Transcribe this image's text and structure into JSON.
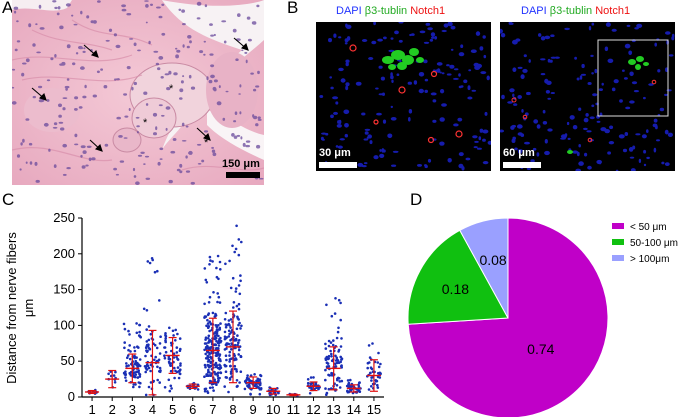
{
  "panels": {
    "A": {
      "letter": "A",
      "scale_bar": "150 μm"
    },
    "B": {
      "letter": "B",
      "legend_left": {
        "dapi": "DAPI",
        "tublin": "β3-tublin",
        "notch": "Notch1"
      },
      "legend_right": {
        "dapi": "DAPI",
        "tublin": "β3-tublin",
        "notch": "Notch1"
      },
      "scale_left": "30 μm",
      "scale_right": "60 μm"
    },
    "C": {
      "letter": "C"
    },
    "D": {
      "letter": "D"
    }
  },
  "colors": {
    "dapi": "#2233ff",
    "tublin": "#22cc22",
    "notch": "#ff2222",
    "dots": "#1a2fb5",
    "error_bars": "#e01010",
    "pie_lt50": "#c000c8",
    "pie_50_100": "#10c010",
    "pie_gt100": "#9aa0ff"
  },
  "chart_data": [
    {
      "type": "scatter",
      "ylabel_line1": "Distance from nerve fibers",
      "ylabel_line2": "μm",
      "ylim": [
        0,
        250
      ],
      "yticks": [
        0,
        50,
        100,
        150,
        200,
        250
      ],
      "categories": [
        "1",
        "2",
        "3",
        "4",
        "5",
        "6",
        "7",
        "8",
        "9",
        "10",
        "11",
        "12",
        "13",
        "14",
        "15"
      ],
      "series": [
        {
          "category": "1",
          "mean": 7,
          "sd": 2,
          "min": 3,
          "max": 10,
          "n": 10
        },
        {
          "category": "2",
          "mean": 25,
          "sd": 12,
          "min": 8,
          "max": 40,
          "n": 10
        },
        {
          "category": "3",
          "mean": 40,
          "sd": 20,
          "min": 3,
          "max": 105,
          "n": 90
        },
        {
          "category": "4",
          "mean": 48,
          "sd": 45,
          "min": 3,
          "max": 205,
          "n": 70
        },
        {
          "category": "5",
          "mean": 58,
          "sd": 25,
          "min": 3,
          "max": 100,
          "n": 60
        },
        {
          "category": "6",
          "mean": 15,
          "sd": 3,
          "min": 8,
          "max": 20,
          "n": 20
        },
        {
          "category": "7",
          "mean": 65,
          "sd": 45,
          "min": 3,
          "max": 198,
          "n": 220
        },
        {
          "category": "8",
          "mean": 70,
          "sd": 50,
          "min": 3,
          "max": 250,
          "n": 130
        },
        {
          "category": "9",
          "mean": 20,
          "sd": 8,
          "min": 3,
          "max": 35,
          "n": 60
        },
        {
          "category": "10",
          "mean": 8,
          "sd": 4,
          "min": 3,
          "max": 15,
          "n": 20
        },
        {
          "category": "11",
          "mean": 3,
          "sd": 1,
          "min": 1,
          "max": 5,
          "n": 8
        },
        {
          "category": "12",
          "mean": 15,
          "sd": 6,
          "min": 5,
          "max": 28,
          "n": 30
        },
        {
          "category": "13",
          "mean": 40,
          "sd": 30,
          "min": 3,
          "max": 140,
          "n": 90
        },
        {
          "category": "14",
          "mean": 12,
          "sd": 5,
          "min": 3,
          "max": 25,
          "n": 40
        },
        {
          "category": "15",
          "mean": 30,
          "sd": 22,
          "min": 3,
          "max": 75,
          "n": 40
        }
      ]
    },
    {
      "type": "pie",
      "slices": [
        {
          "label": "< 50 μm",
          "value": 0.74,
          "text": "0.74",
          "color": "#c000c8"
        },
        {
          "label": "50-100 μm",
          "value": 0.18,
          "text": "0.18",
          "color": "#10c010"
        },
        {
          "label": "> 100μm",
          "value": 0.08,
          "text": "0.08",
          "color": "#9aa0ff"
        }
      ],
      "legend_position": "top-right"
    }
  ]
}
